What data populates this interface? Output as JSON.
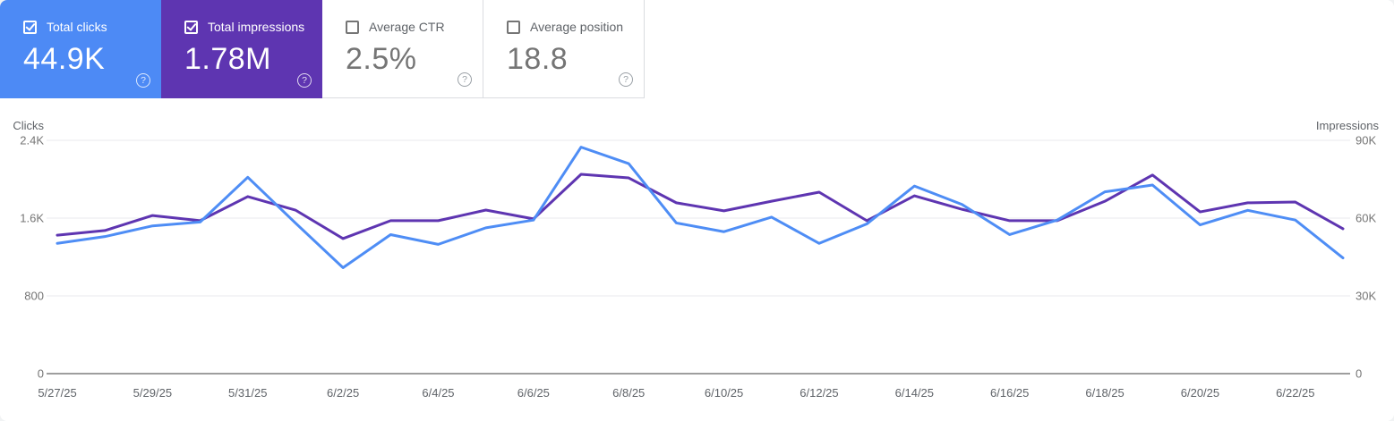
{
  "cards": [
    {
      "label": "Total clicks",
      "value": "44.9K",
      "checked": true,
      "bg": "#4d8af5",
      "style": "colored"
    },
    {
      "label": "Total impressions",
      "value": "1.78M",
      "checked": true,
      "bg": "#5e35b1",
      "style": "colored"
    },
    {
      "label": "Average CTR",
      "value": "2.5%",
      "checked": false,
      "bg": "#ffffff",
      "style": "plain"
    },
    {
      "label": "Average position",
      "value": "18.8",
      "checked": false,
      "bg": "#ffffff",
      "style": "plain"
    }
  ],
  "icons": {
    "help": "question-mark-circle",
    "checked": "checkmark"
  },
  "colors": {
    "clicks_accent": "#4d8af5",
    "impressions_accent": "#5e35b1",
    "gridline": "#e8eaed",
    "axis_baseline": "#9e9e9e",
    "tick_text": "#757575",
    "date_text": "#5f6368",
    "card_border": "#dadce0"
  },
  "chart_data": {
    "type": "line",
    "title": "",
    "grid": "horizontal",
    "legend_position": "none",
    "x_dates": [
      "5/27/25",
      "5/28/25",
      "5/29/25",
      "5/30/25",
      "5/31/25",
      "6/1/25",
      "6/2/25",
      "6/3/25",
      "6/4/25",
      "6/5/25",
      "6/6/25",
      "6/7/25",
      "6/8/25",
      "6/9/25",
      "6/10/25",
      "6/11/25",
      "6/12/25",
      "6/13/25",
      "6/14/25",
      "6/15/25",
      "6/16/25",
      "6/17/25",
      "6/18/25",
      "6/19/25",
      "6/20/25",
      "6/21/25",
      "6/22/25",
      "6/23/25"
    ],
    "x_tick_labels": [
      "5/27/25",
      "5/29/25",
      "5/31/25",
      "6/2/25",
      "6/4/25",
      "6/6/25",
      "6/8/25",
      "6/10/25",
      "6/12/25",
      "6/14/25",
      "6/16/25",
      "6/18/25",
      "6/20/25",
      "6/22/25"
    ],
    "x_tick_every": 2,
    "series": [
      {
        "name": "Clicks",
        "axis": "left",
        "color": "#4e8df5",
        "values": [
          1340,
          1410,
          1520,
          1560,
          2020,
          1550,
          1090,
          1430,
          1330,
          1500,
          1580,
          2330,
          2160,
          1550,
          1460,
          1610,
          1340,
          1540,
          1930,
          1740,
          1430,
          1580,
          1870,
          1940,
          1530,
          1680,
          1580,
          1190
        ]
      },
      {
        "name": "Impressions",
        "axis": "right",
        "color": "#5e35b1",
        "values": [
          53400,
          55200,
          61000,
          59000,
          68300,
          63100,
          52100,
          59000,
          59000,
          63100,
          59700,
          76900,
          75500,
          65900,
          62800,
          66500,
          70000,
          59000,
          68600,
          63400,
          59000,
          59000,
          66500,
          76600,
          62400,
          65900,
          66200,
          55900
        ]
      }
    ],
    "left_axis": {
      "title": "Clicks",
      "min": 0,
      "max": 2400,
      "tick_values": [
        0,
        800,
        1600,
        2400
      ],
      "tick_labels": [
        "0",
        "800",
        "1.6K",
        "2.4K"
      ]
    },
    "right_axis": {
      "title": "Impressions",
      "min": 0,
      "max": 90000,
      "tick_values": [
        0,
        30000,
        60000,
        90000
      ],
      "tick_labels": [
        "0",
        "30K",
        "60K",
        "90K"
      ]
    }
  }
}
